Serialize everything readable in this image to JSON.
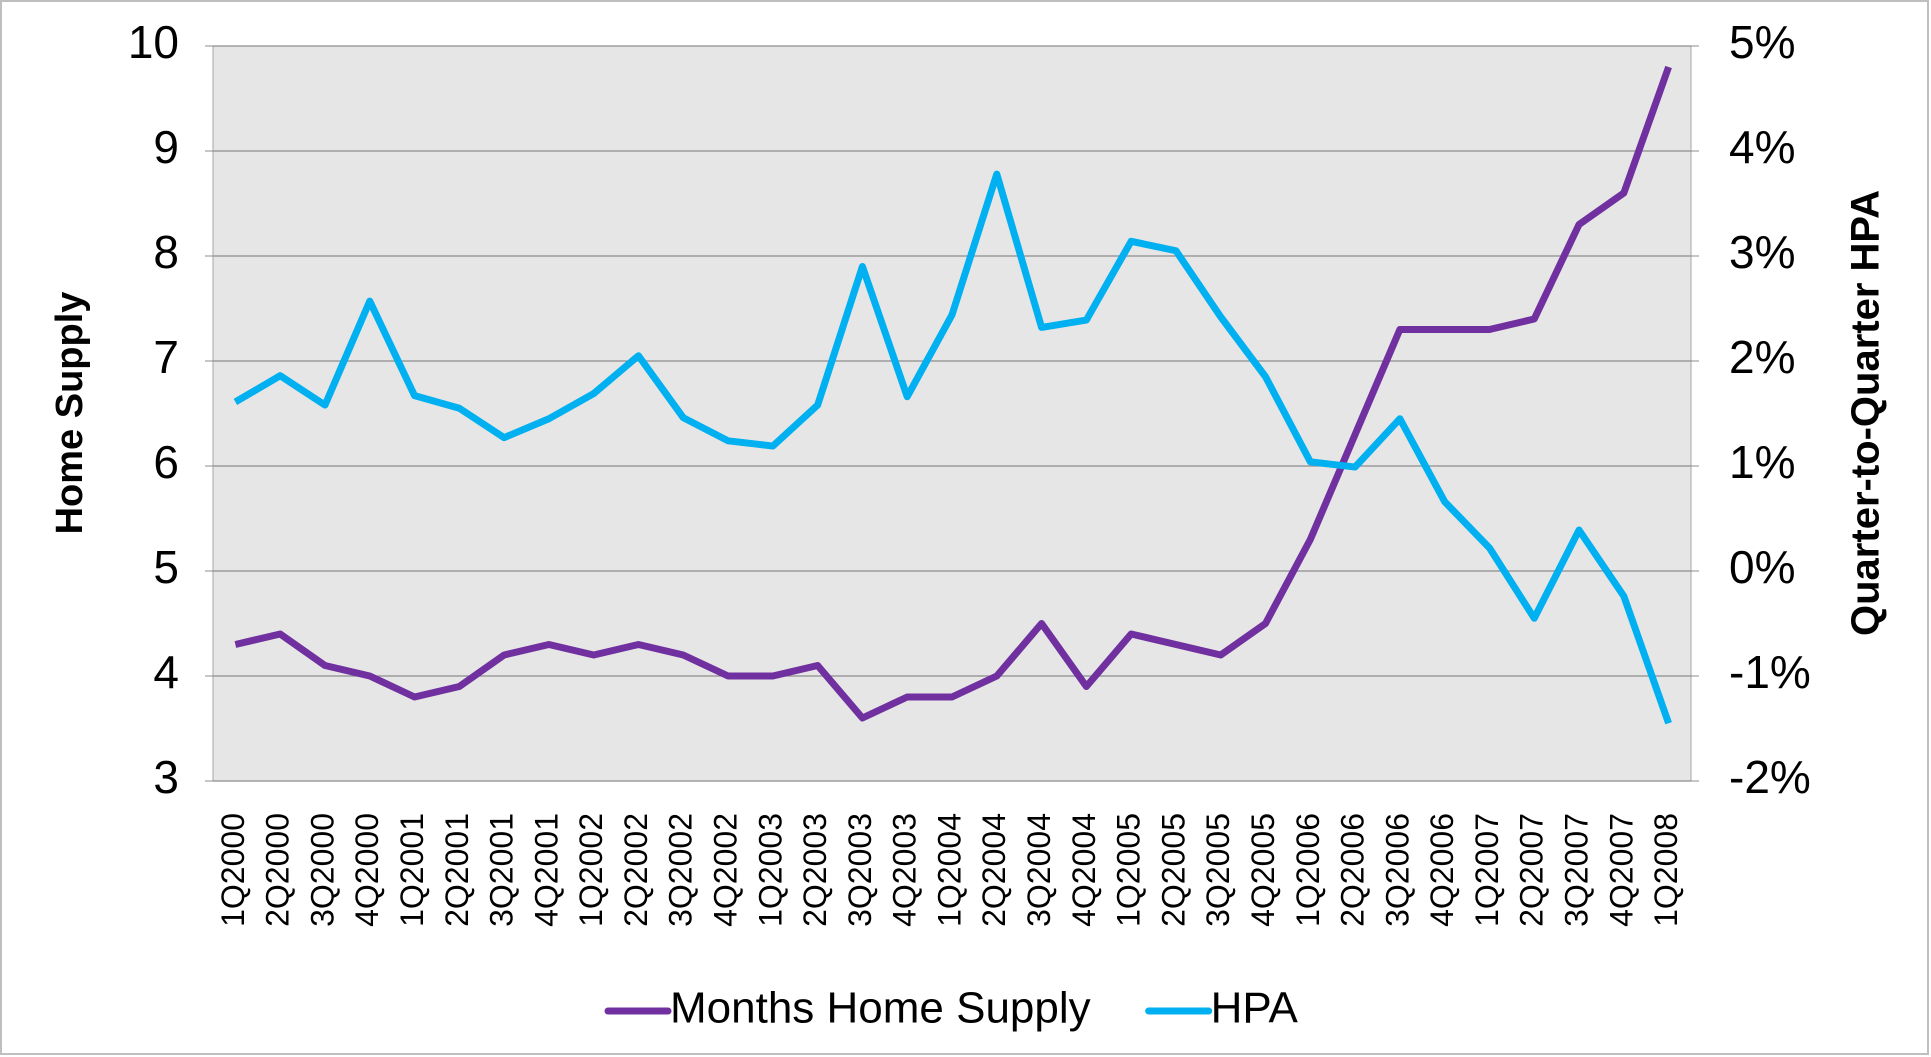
{
  "chart_data": {
    "type": "line",
    "categories": [
      "1Q2000",
      "2Q2000",
      "3Q2000",
      "4Q2000",
      "1Q2001",
      "2Q2001",
      "3Q2001",
      "4Q2001",
      "1Q2002",
      "2Q2002",
      "3Q2002",
      "4Q2002",
      "1Q2003",
      "2Q2003",
      "3Q2003",
      "4Q2003",
      "1Q2004",
      "2Q2004",
      "3Q2004",
      "4Q2004",
      "1Q2005",
      "2Q2005",
      "3Q2005",
      "4Q2005",
      "1Q2006",
      "2Q2006",
      "3Q2006",
      "4Q2006",
      "1Q2007",
      "2Q2007",
      "3Q2007",
      "4Q2007",
      "1Q2008"
    ],
    "y_label": "Home Supply",
    "y2_label": "Quarter-to-Quarter HPA",
    "ylim": [
      3,
      10
    ],
    "yticks": [
      3,
      4,
      5,
      6,
      7,
      8,
      9,
      10
    ],
    "y2lim": [
      -2,
      5
    ],
    "y2ticks": [
      {
        "value": -2,
        "label": "-2%"
      },
      {
        "value": -1,
        "label": "-1%"
      },
      {
        "value": 0,
        "label": "0%"
      },
      {
        "value": 1,
        "label": "1%"
      },
      {
        "value": 2,
        "label": "2%"
      },
      {
        "value": 3,
        "label": "3%"
      },
      {
        "value": 4,
        "label": "4%"
      },
      {
        "value": 5,
        "label": "5%"
      }
    ],
    "grid": true,
    "legend": "bottom",
    "series": [
      {
        "name": "Months Home Supply",
        "color": "#7030a0",
        "values": [
          4.3,
          4.4,
          4.1,
          4.0,
          3.8,
          3.9,
          4.2,
          4.3,
          4.2,
          4.3,
          4.2,
          4.0,
          4.0,
          4.1,
          3.6,
          3.8,
          3.8,
          4.0,
          4.5,
          3.9,
          4.4,
          4.3,
          4.2,
          4.5,
          5.3,
          6.3,
          7.3,
          7.3,
          7.3,
          7.4,
          8.3,
          8.6,
          9.8
        ]
      },
      {
        "name": "HPA",
        "color": "#00b0f0",
        "axis": "y2",
        "values": [
          1.61,
          1.86,
          1.58,
          2.57,
          1.67,
          1.55,
          1.27,
          1.45,
          1.69,
          2.05,
          1.46,
          1.24,
          1.19,
          1.58,
          2.9,
          1.66,
          2.44,
          3.78,
          2.32,
          2.39,
          3.14,
          3.05,
          2.42,
          1.85,
          1.04,
          0.99,
          1.45,
          0.66,
          0.22,
          -0.45,
          0.39,
          -0.24,
          -1.45
        ]
      }
    ]
  }
}
